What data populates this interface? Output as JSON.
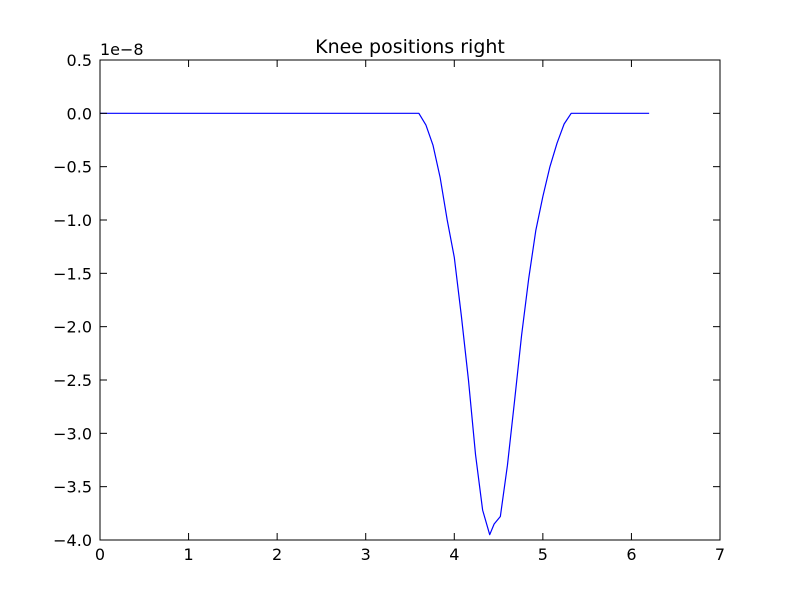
{
  "chart_data": {
    "type": "line",
    "title": "Knee positions right",
    "xlabel": "",
    "ylabel": "",
    "y_offset_label": "1e−8",
    "y_scale": 1e-08,
    "xlim": [
      0,
      7
    ],
    "ylim": [
      -4.0,
      0.5
    ],
    "x_ticks": [
      0,
      1,
      2,
      3,
      4,
      5,
      6,
      7
    ],
    "x_tick_labels": [
      "0",
      "1",
      "2",
      "3",
      "4",
      "5",
      "6",
      "7"
    ],
    "y_ticks": [
      0.5,
      0.0,
      -0.5,
      -1.0,
      -1.5,
      -2.0,
      -2.5,
      -3.0,
      -3.5,
      -4.0
    ],
    "y_tick_labels": [
      "0.5",
      "0.0",
      "−0.5",
      "−1.0",
      "−1.5",
      "−2.0",
      "−2.5",
      "−3.0",
      "−3.5",
      "−4.0"
    ],
    "grid": false,
    "line_color": "#0000ff",
    "series": [
      {
        "x": [
          0,
          3.55,
          3.6,
          3.68,
          3.76,
          3.84,
          3.92,
          4.0,
          4.08,
          4.16,
          4.24,
          4.32,
          4.4,
          4.45,
          4.52,
          4.6,
          4.68,
          4.76,
          4.84,
          4.92,
          5.0,
          5.08,
          5.16,
          5.24,
          5.32,
          5.4,
          5.45,
          6.2
        ],
        "y": [
          0.0,
          0.0,
          0.0,
          -0.11,
          -0.3,
          -0.6,
          -1.0,
          -1.35,
          -1.9,
          -2.5,
          -3.2,
          -3.72,
          -3.95,
          -3.85,
          -3.78,
          -3.3,
          -2.7,
          -2.08,
          -1.55,
          -1.1,
          -0.78,
          -0.5,
          -0.28,
          -0.1,
          0.0,
          0.0,
          0.0,
          0.0
        ]
      }
    ]
  }
}
